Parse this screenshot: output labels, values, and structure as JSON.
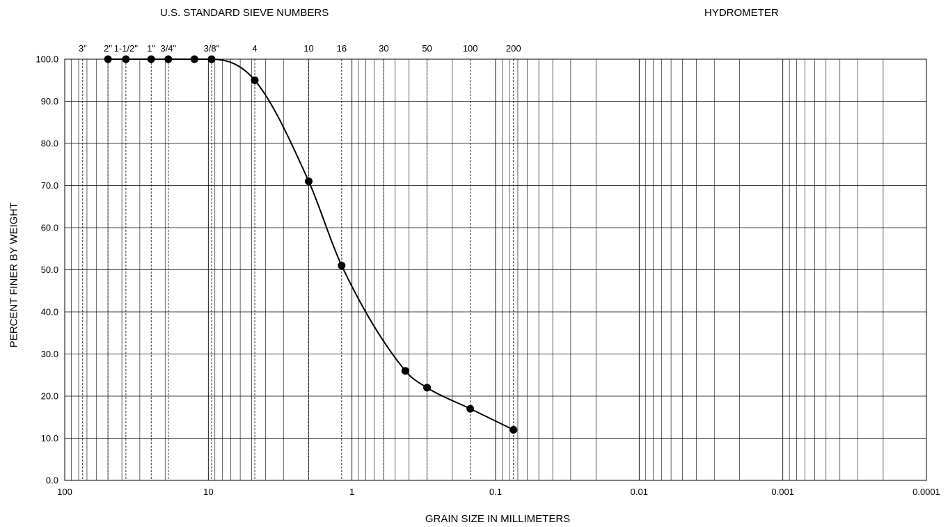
{
  "chart_data": {
    "type": "line",
    "title": "",
    "top_left_header": "U.S. STANDARD SIEVE NUMBERS",
    "top_right_header": "HYDROMETER",
    "xlabel": "GRAIN SIZE IN MILLIMETERS",
    "ylabel": "PERCENT FINER BY WEIGHT",
    "x_scale": "log",
    "x_reversed": true,
    "xlim": [
      100,
      0.0001
    ],
    "ylim": [
      0,
      100
    ],
    "x_tick_labels": [
      "100",
      "10",
      "1",
      "0.1",
      "0.01",
      "0.001",
      "0.0001"
    ],
    "x_tick_values": [
      100,
      10,
      1,
      0.1,
      0.01,
      0.001,
      0.0001
    ],
    "y_tick_labels": [
      "0.0",
      "10.0",
      "20.0",
      "30.0",
      "40.0",
      "50.0",
      "60.0",
      "70.0",
      "80.0",
      "90.0",
      "100.0"
    ],
    "y_tick_values": [
      0,
      10,
      20,
      30,
      40,
      50,
      60,
      70,
      80,
      90,
      100
    ],
    "grid": true,
    "sieves": [
      {
        "label": "3\"",
        "size_mm": 75
      },
      {
        "label": "2\"",
        "size_mm": 50
      },
      {
        "label": "1-1/2\"",
        "size_mm": 37.5
      },
      {
        "label": "1\"",
        "size_mm": 25
      },
      {
        "label": "3/4\"",
        "size_mm": 19
      },
      {
        "label": "3/8\"",
        "size_mm": 9.5
      },
      {
        "label": "4",
        "size_mm": 4.75
      },
      {
        "label": "10",
        "size_mm": 2.0
      },
      {
        "label": "16",
        "size_mm": 1.18
      },
      {
        "label": "30",
        "size_mm": 0.6
      },
      {
        "label": "50",
        "size_mm": 0.3
      },
      {
        "label": "100",
        "size_mm": 0.15
      },
      {
        "label": "200",
        "size_mm": 0.075
      }
    ],
    "series": [
      {
        "color": "#000000",
        "x": [
          50,
          37.5,
          25,
          19,
          12.5,
          9.5,
          4.75,
          2.0,
          1.18,
          0.425,
          0.3,
          0.15,
          0.075
        ],
        "y": [
          100,
          100,
          100,
          100,
          100,
          100,
          95,
          71,
          51,
          26,
          22,
          17,
          12
        ]
      }
    ]
  }
}
